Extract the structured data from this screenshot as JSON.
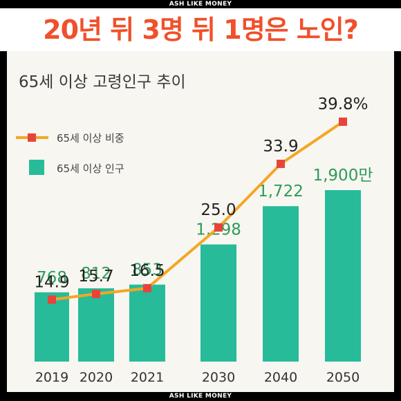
{
  "header": {
    "brand_top": "ASH LIKE MONEY",
    "headline": "20년 뒤 3명 뒤 1명은 노인?",
    "brand_bottom": "ASH LIKE MONEY"
  },
  "colors": {
    "headline": "#f0502a",
    "bar": "#27bb9a",
    "bar_label": "#2e9a5a",
    "line": "#f5a623",
    "marker": "#e8433a",
    "panel": "#f7f6f1"
  },
  "chart_data": {
    "type": "bar+line",
    "title": "65세 이상 고령인구 추이",
    "categories": [
      "2019",
      "2020",
      "2021",
      "2030",
      "2040",
      "2050"
    ],
    "bar_labels": [
      "768",
      "812",
      "853",
      "1,298",
      "1,722",
      "1,900만"
    ],
    "line_labels": [
      "14.9",
      "15.7",
      "16.5",
      "25.0",
      "33.9",
      "39.8%"
    ],
    "series": [
      {
        "name": "65세 이상 비중",
        "kind": "line",
        "values": [
          14.9,
          15.7,
          16.5,
          25.0,
          33.9,
          39.8
        ]
      },
      {
        "name": "65세 이상 인구",
        "kind": "bar",
        "values": [
          768,
          812,
          853,
          1298,
          1722,
          1900
        ]
      }
    ],
    "legend": "top-left",
    "grid": false
  }
}
